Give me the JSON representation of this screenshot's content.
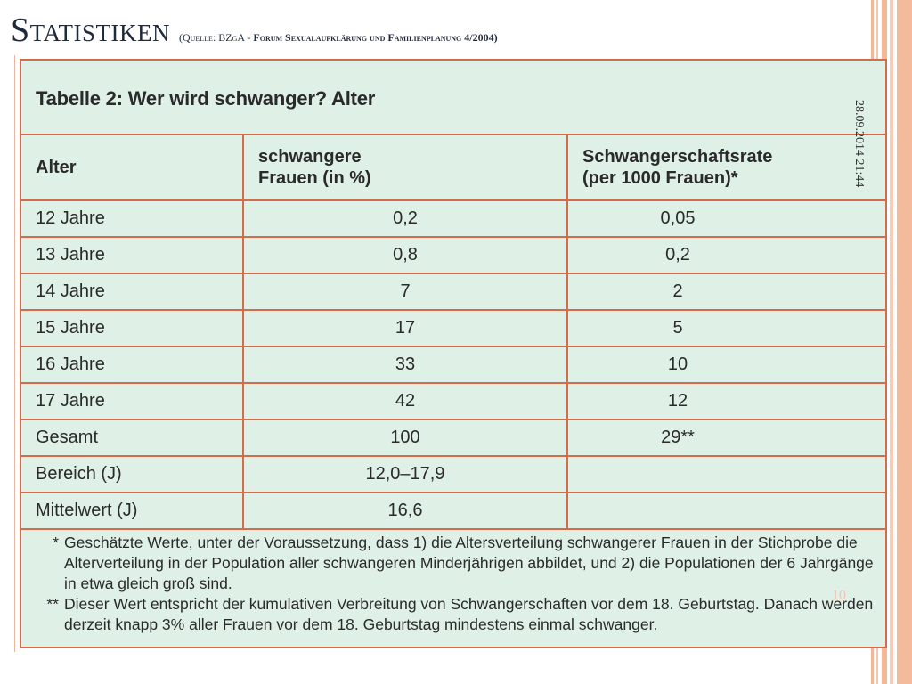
{
  "slide": {
    "title": "Statistiken",
    "source_prefix": "(Quelle: BZgA - ",
    "source_bold": "Forum Sexualaufklärung und Familienplanung 4/2004)",
    "date_stamp": "28.09.2014 21:44",
    "page_number": "10"
  },
  "table": {
    "caption": "Tabelle 2: Wer wird schwanger? Alter",
    "headers": {
      "col1": "Alter",
      "col2_line1": "schwangere",
      "col2_line2": "Frauen (in %)",
      "col3_line1": "Schwangerschaftsrate",
      "col3_line2": "(per 1000 Frauen)*"
    },
    "rows": [
      {
        "alter": "12 Jahre",
        "prozent": "0,2",
        "rate": "0,05"
      },
      {
        "alter": "13 Jahre",
        "prozent": "0,8",
        "rate": "0,2"
      },
      {
        "alter": "14 Jahre",
        "prozent": "7",
        "rate": "2"
      },
      {
        "alter": "15 Jahre",
        "prozent": "17",
        "rate": "5"
      },
      {
        "alter": "16 Jahre",
        "prozent": "33",
        "rate": "10"
      },
      {
        "alter": "17 Jahre",
        "prozent": "42",
        "rate": "12"
      },
      {
        "alter": "Gesamt",
        "prozent": "100",
        "rate": "29**"
      },
      {
        "alter": "Bereich (J)",
        "prozent": "12,0–17,9",
        "rate": ""
      },
      {
        "alter": "Mittelwert (J)",
        "prozent": "16,6",
        "rate": ""
      }
    ],
    "footnote1_mark": "*",
    "footnote1": "Geschätzte Werte, unter der Voraussetzung, dass 1) die Altersverteilung schwangerer Frauen in der Stichprobe die Alterverteilung in der Population aller schwangeren Minderjährigen abbildet, und 2) die Populationen der 6 Jahrgänge in etwa gleich groß sind.",
    "footnote2_mark": "**",
    "footnote2": "Dieser Wert entspricht der kumulativen Verbreitung von Schwangerschaften vor dem 18. Geburtstag. Danach werden derzeit knapp 3% aller Frauen vor dem 18. Geburtstag mindestens einmal schwanger."
  },
  "colors": {
    "table_background": "#dff0e6",
    "table_border": "#d66b4b",
    "accent_stripe": "#f4ba9c",
    "title_text": "#1f2a3c"
  }
}
